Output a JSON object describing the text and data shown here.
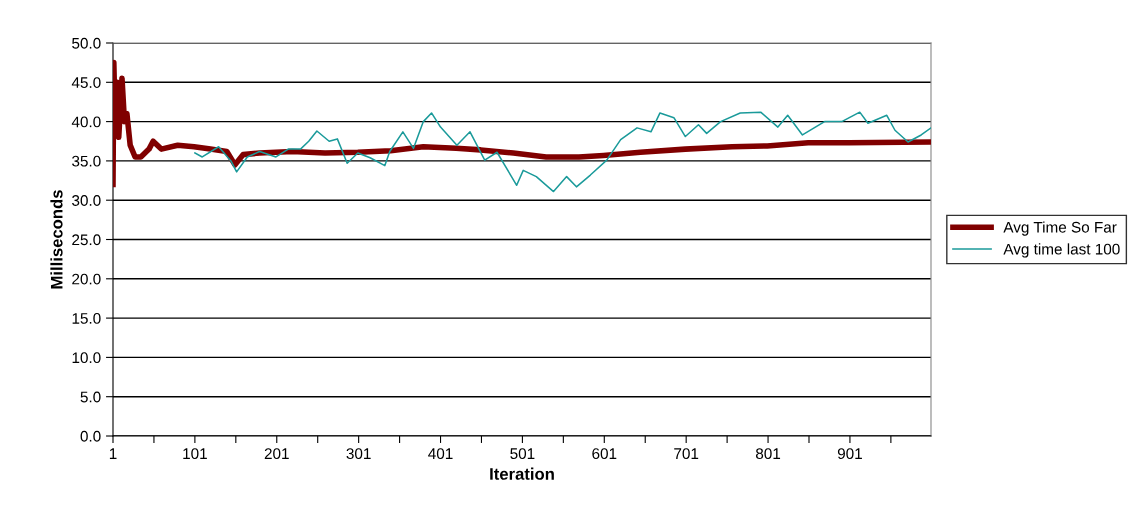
{
  "chart_data": {
    "type": "line",
    "xlabel": "Iteration",
    "ylabel": "Milliseconds",
    "xlim": [
      1,
      1000
    ],
    "ylim": [
      0,
      50
    ],
    "xticks": [
      1,
      {
        "value": 51,
        "label": null
      },
      101,
      {
        "value": 151,
        "label": null
      },
      201,
      {
        "value": 251,
        "label": null
      },
      301,
      {
        "value": 351,
        "label": null
      },
      401,
      {
        "value": 451,
        "label": null
      },
      501,
      {
        "value": 551,
        "label": null
      },
      601,
      {
        "value": 651,
        "label": null
      },
      701,
      {
        "value": 751,
        "label": null
      },
      801,
      {
        "value": 851,
        "label": null
      },
      901,
      {
        "value": 951,
        "label": null
      }
    ],
    "yticks": [
      {
        "value": 0,
        "label": "0.0"
      },
      {
        "value": 5,
        "label": "5.0"
      },
      {
        "value": 10,
        "label": "10.0"
      },
      {
        "value": 15,
        "label": "15.0"
      },
      {
        "value": 20,
        "label": "20.0"
      },
      {
        "value": 25,
        "label": "25.0"
      },
      {
        "value": 30,
        "label": "30.0"
      },
      {
        "value": 35,
        "label": "35.0"
      },
      {
        "value": 40,
        "label": "40.0"
      },
      {
        "value": 45,
        "label": "45.0"
      },
      {
        "value": 50,
        "label": "50.0"
      }
    ],
    "grid": "y",
    "legend": "right",
    "marker": "none",
    "line_style": "solid",
    "series": [
      {
        "name": "Avg Time So Far",
        "color": "#800000",
        "x": [
          1,
          2,
          4,
          6,
          8,
          12,
          15,
          18,
          22,
          28,
          35,
          45,
          50,
          60,
          80,
          100,
          120,
          140,
          150,
          160,
          180,
          220,
          260,
          300,
          340,
          380,
          420,
          450,
          490,
          530,
          570,
          600,
          645,
          700,
          757,
          800,
          850,
          900,
          1000
        ],
        "values": [
          32.0,
          47.5,
          38.5,
          45.0,
          38.0,
          45.5,
          40.0,
          41.0,
          37.0,
          35.5,
          35.5,
          36.5,
          37.5,
          36.5,
          37.0,
          36.8,
          36.5,
          36.2,
          34.5,
          35.8,
          36.0,
          36.2,
          36.0,
          36.1,
          36.3,
          36.8,
          36.6,
          36.4,
          36.0,
          35.5,
          35.5,
          35.7,
          36.1,
          36.5,
          36.8,
          36.9,
          37.3,
          37.3,
          37.4
        ]
      },
      {
        "name": "Avg time last 100",
        "color": "#1a9a9a",
        "x": [
          101,
          110,
          130,
          145,
          152,
          165,
          180,
          200,
          215,
          230,
          240,
          250,
          265,
          275,
          287,
          300,
          315,
          333,
          339,
          355,
          368,
          380,
          390,
          401,
          421,
          437,
          455,
          470,
          494,
          502,
          518,
          539,
          555,
          567,
          584,
          604,
          621,
          641,
          658,
          669,
          686,
          700,
          716,
          726,
          743,
          767,
          792,
          813,
          825,
          843,
          870,
          891,
          913,
          923,
          946,
          956,
          972,
          988,
          1000
        ],
        "values": [
          36.0,
          35.5,
          36.8,
          35.0,
          33.6,
          35.5,
          36.2,
          35.5,
          36.5,
          36.5,
          37.5,
          38.8,
          37.5,
          37.8,
          34.7,
          36.0,
          35.4,
          34.4,
          36.2,
          38.7,
          36.6,
          40.0,
          41.1,
          39.3,
          37.0,
          38.7,
          35.1,
          36.1,
          31.9,
          33.8,
          33.0,
          31.1,
          33.0,
          31.7,
          33.2,
          35.1,
          37.7,
          39.2,
          38.7,
          41.1,
          40.5,
          38.1,
          39.6,
          38.5,
          40.0,
          41.1,
          41.2,
          39.3,
          40.8,
          38.3,
          40.0,
          40.0,
          41.2,
          39.8,
          40.8,
          38.9,
          37.4,
          38.3,
          39.2
        ]
      }
    ]
  }
}
